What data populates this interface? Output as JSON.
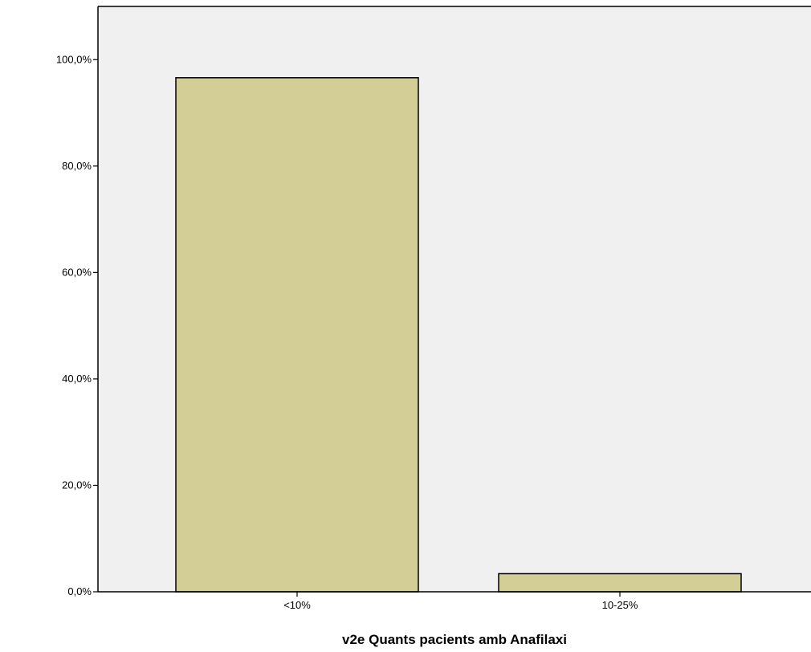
{
  "chart_data": {
    "type": "bar",
    "categories": [
      "<10%",
      "10-25%"
    ],
    "values": [
      96.6,
      3.4
    ],
    "xlabel": "v2e Quants pacients amb  Anafilaxi",
    "ylabel": "",
    "ylim": [
      0,
      110
    ],
    "yticks": [
      0,
      20,
      40,
      60,
      80,
      100
    ],
    "ytick_labels": [
      "0,0%",
      "20,0%",
      "40,0%",
      "60,0%",
      "80,0%",
      "100,0%"
    ],
    "grid": false,
    "colors": {
      "plot_background": "#f0f0f0",
      "bar_fill": "#d3cd96",
      "bar_stroke": "#000000"
    }
  }
}
